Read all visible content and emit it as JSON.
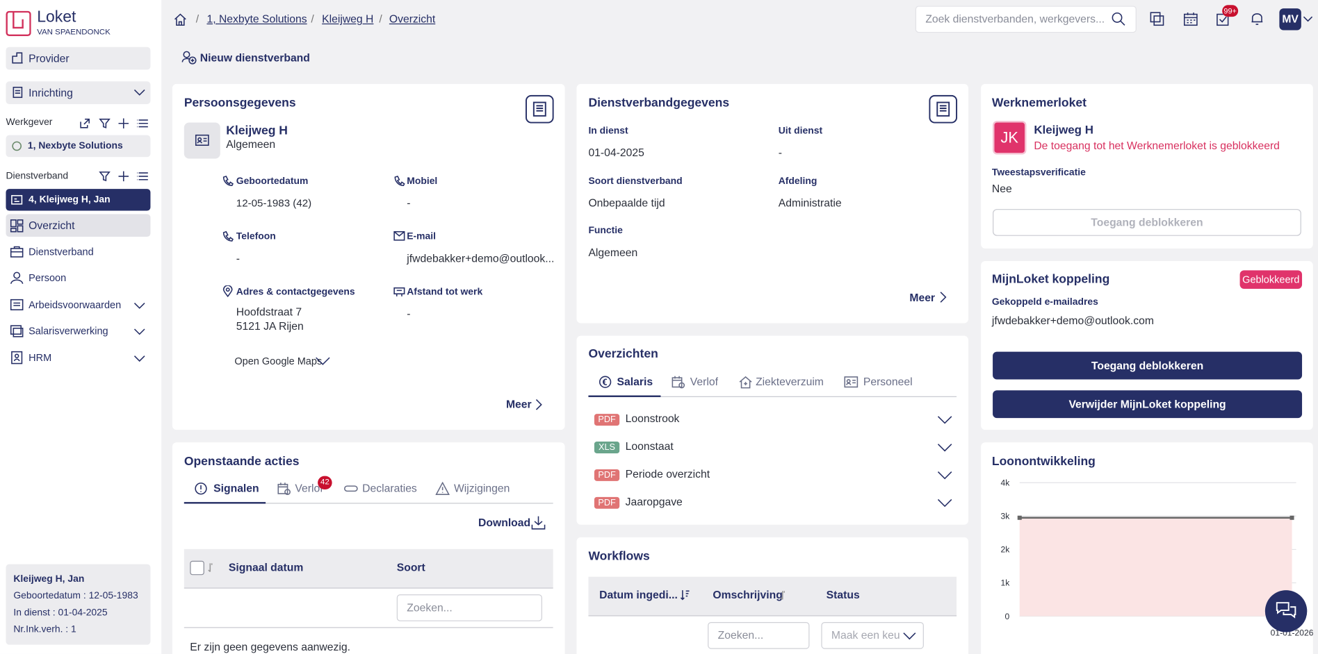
{
  "sidebar": {
    "logo": {
      "name": "Loket",
      "sub": "VAN SPAENDONCK"
    },
    "provider": "Provider",
    "inrichting": "Inrichting",
    "werkgever_label": "Werkgever",
    "werkgever": "1, Nexbyte Solutions",
    "dienstverband_label": "Dienstverband",
    "dienstverband": "4, Kleijweg H, Jan",
    "menu": [
      "Overzicht",
      "Dienstverband",
      "Persoon",
      "Arbeidsvoorwaarden",
      "Salarisverwerking",
      "HRM"
    ],
    "summary": {
      "name": "Kleijweg H, Jan",
      "lines": [
        "Geboortedatum : 12-05-1983",
        "In dienst : 01-04-2025",
        "Nr.Ink.verh. : 1"
      ]
    }
  },
  "header": {
    "breadcrumb": [
      "1, Nexbyte Solutions",
      "Kleijweg H",
      "Overzicht"
    ],
    "search_placeholder": "Zoek dienstverbanden, werkgevers...",
    "notification_badge": "99+",
    "avatar": "MV"
  },
  "new_button": "Nieuw dienstverband",
  "persoonsgegevens": {
    "title": "Persoonsgegevens",
    "name": "Kleijweg H",
    "role": "Algemeen",
    "fields": [
      {
        "label": "Geboortedatum",
        "value": "12-05-1983 (42)"
      },
      {
        "label": "Mobiel",
        "value": "-"
      },
      {
        "label": "Telefoon",
        "value": "-"
      },
      {
        "label": "E-mail",
        "value": "jfwdebakker+demo@outlook..."
      },
      {
        "label": "Adres & contactgegevens",
        "value": "Hoofdstraat 7",
        "value2": "5121 JA Rijen"
      },
      {
        "label": "Afstand tot werk",
        "value": "-"
      }
    ],
    "maps": "Open Google Maps",
    "more": "Meer"
  },
  "dienstverband": {
    "title": "Dienstverbandgegevens",
    "fields": [
      {
        "label": "In dienst",
        "value": "01-04-2025"
      },
      {
        "label": "Uit dienst",
        "value": "-"
      },
      {
        "label": "Soort dienstverband",
        "value": "Onbepaalde tijd"
      },
      {
        "label": "Afdeling",
        "value": "Administratie"
      },
      {
        "label": "Functie",
        "value": "Algemeen"
      }
    ],
    "more": "Meer"
  },
  "werknemerloket": {
    "title": "Werknemerloket",
    "initials": "JK",
    "name": "Kleijweg H",
    "message": "De toegang tot het Werknemerloket is geblokkeerd",
    "tfa_label": "Tweestapsverificatie",
    "tfa_value": "Nee",
    "button": "Toegang deblokkeren"
  },
  "mijnloket": {
    "title": "MijnLoket koppeling",
    "status": "Geblokkeerd",
    "email_label": "Gekoppeld e-mailadres",
    "email": "jfwdebakker+demo@outlook.com",
    "buttons": [
      "Toegang deblokkeren",
      "Verwijder MijnLoket koppeling"
    ]
  },
  "overzichten": {
    "title": "Overzichten",
    "tabs": [
      "Salaris",
      "Verlof",
      "Ziekteverzuim",
      "Personeel"
    ],
    "documents": [
      {
        "type": "PDF",
        "name": "Loonstrook"
      },
      {
        "type": "XLS",
        "name": "Loonstaat"
      },
      {
        "type": "PDF",
        "name": "Periode overzicht"
      },
      {
        "type": "PDF",
        "name": "Jaaropgave"
      }
    ]
  },
  "openstaande": {
    "title": "Openstaande acties",
    "tabs": [
      "Signalen",
      "Verlof",
      "Declaraties",
      "Wijzigingen"
    ],
    "verlof_badge": "42",
    "download": "Download",
    "columns": [
      "Signaal datum",
      "Soort"
    ],
    "search_placeholder": "Zoeken...",
    "empty": "Er zijn geen gegevens aanwezig."
  },
  "workflows": {
    "title": "Workflows",
    "columns": [
      "Datum ingedi...",
      "Omschrijving",
      "Status"
    ],
    "search_placeholder": "Zoeken...",
    "select_placeholder": "Maak een keu"
  },
  "chart_data": {
    "type": "area",
    "title": "Loonontwikkeling",
    "categories": [
      null,
      "01-01-2026"
    ],
    "values": [
      2950,
      2950
    ],
    "color": "#666666",
    "fill_color": "#fbe4e4",
    "ylim": [
      0,
      4000
    ],
    "yticks": [
      0,
      {
        "value": 1000,
        "label": "1k"
      },
      {
        "value": 2000,
        "label": "2k"
      },
      {
        "value": 3000,
        "label": "3k"
      },
      {
        "value": 4000,
        "label": "4k"
      }
    ],
    "grid": true
  }
}
